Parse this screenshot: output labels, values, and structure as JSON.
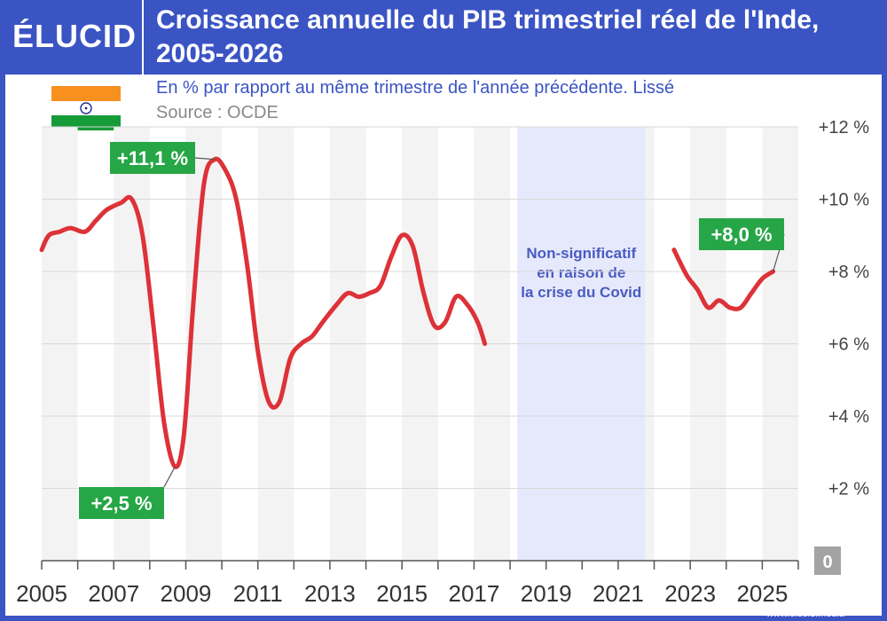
{
  "brand": {
    "logo": "ÉLUCID",
    "url": "www.elucid.media"
  },
  "title": "Croissance annuelle du PIB trimestriel réel de l'Inde, 2005-2026",
  "subtitle": "En % par rapport au même trimestre de l'année précédente. Lissé",
  "source": "Source : OCDE",
  "colors": {
    "brand_blue": "#3b54c4",
    "line": "#dc3238",
    "label_green": "#26a646",
    "covid_band": "#e6e9fb",
    "covid_text": "#4a5bc0",
    "zero_badge": "#a3a3a3"
  },
  "chart_data": {
    "type": "line",
    "x_unit": "year",
    "xlim": [
      2005,
      2026
    ],
    "ylim": [
      0,
      12
    ],
    "y_ticks": [
      2,
      4,
      6,
      8,
      10,
      12
    ],
    "y_tick_labels": [
      "+2 %",
      "+4 %",
      "+6 %",
      "+8 %",
      "+10 %",
      "+12 %"
    ],
    "y_zero_label": "0",
    "x_ticks": [
      2005,
      2007,
      2009,
      2011,
      2013,
      2015,
      2017,
      2019,
      2021,
      2023,
      2025
    ],
    "x_tick_labels": [
      "2005",
      "2007",
      "2009",
      "2011",
      "2013",
      "2015",
      "2017",
      "2019",
      "2021",
      "2023",
      "2025"
    ],
    "grid": "horizontal",
    "segments": [
      [
        [
          2005.0,
          8.6
        ],
        [
          2005.2,
          9.0
        ],
        [
          2005.5,
          9.1
        ],
        [
          2005.8,
          9.2
        ],
        [
          2006.2,
          9.1
        ],
        [
          2006.5,
          9.4
        ],
        [
          2006.8,
          9.7
        ],
        [
          2007.2,
          9.9
        ],
        [
          2007.5,
          10.0
        ],
        [
          2007.8,
          9.0
        ],
        [
          2008.1,
          6.5
        ],
        [
          2008.4,
          3.8
        ],
        [
          2008.7,
          2.6
        ],
        [
          2008.95,
          3.5
        ],
        [
          2009.2,
          7.0
        ],
        [
          2009.5,
          10.4
        ],
        [
          2009.8,
          11.1
        ],
        [
          2010.1,
          10.8
        ],
        [
          2010.4,
          10.0
        ],
        [
          2010.7,
          8.2
        ],
        [
          2011.0,
          5.8
        ],
        [
          2011.3,
          4.4
        ],
        [
          2011.6,
          4.4
        ],
        [
          2011.9,
          5.6
        ],
        [
          2012.2,
          6.0
        ],
        [
          2012.5,
          6.2
        ],
        [
          2012.8,
          6.6
        ],
        [
          2013.2,
          7.1
        ],
        [
          2013.5,
          7.4
        ],
        [
          2013.8,
          7.3
        ],
        [
          2014.1,
          7.4
        ],
        [
          2014.4,
          7.6
        ],
        [
          2014.7,
          8.4
        ],
        [
          2015.0,
          9.0
        ],
        [
          2015.3,
          8.7
        ],
        [
          2015.6,
          7.4
        ],
        [
          2015.9,
          6.5
        ],
        [
          2016.2,
          6.6
        ],
        [
          2016.5,
          7.3
        ],
        [
          2016.8,
          7.1
        ],
        [
          2017.1,
          6.6
        ],
        [
          2017.3,
          6.0
        ]
      ],
      [
        [
          2022.55,
          8.6
        ],
        [
          2022.9,
          7.9
        ],
        [
          2023.2,
          7.5
        ],
        [
          2023.5,
          7.0
        ],
        [
          2023.8,
          7.2
        ],
        [
          2024.1,
          7.0
        ],
        [
          2024.4,
          7.0
        ],
        [
          2024.7,
          7.4
        ],
        [
          2025.0,
          7.8
        ],
        [
          2025.3,
          8.0
        ]
      ]
    ],
    "shaded_region": {
      "x": [
        2018.2,
        2021.75
      ],
      "label": "Non-significatif en raison de la crise du Covid"
    },
    "annotations": [
      {
        "label": "+11,1 %",
        "x": 2009.8,
        "y": 11.1
      },
      {
        "label": "+2,5 %",
        "x": 2008.7,
        "y": 2.6
      },
      {
        "label": "+8,0 %",
        "x": 2025.3,
        "y": 8.0
      }
    ]
  }
}
